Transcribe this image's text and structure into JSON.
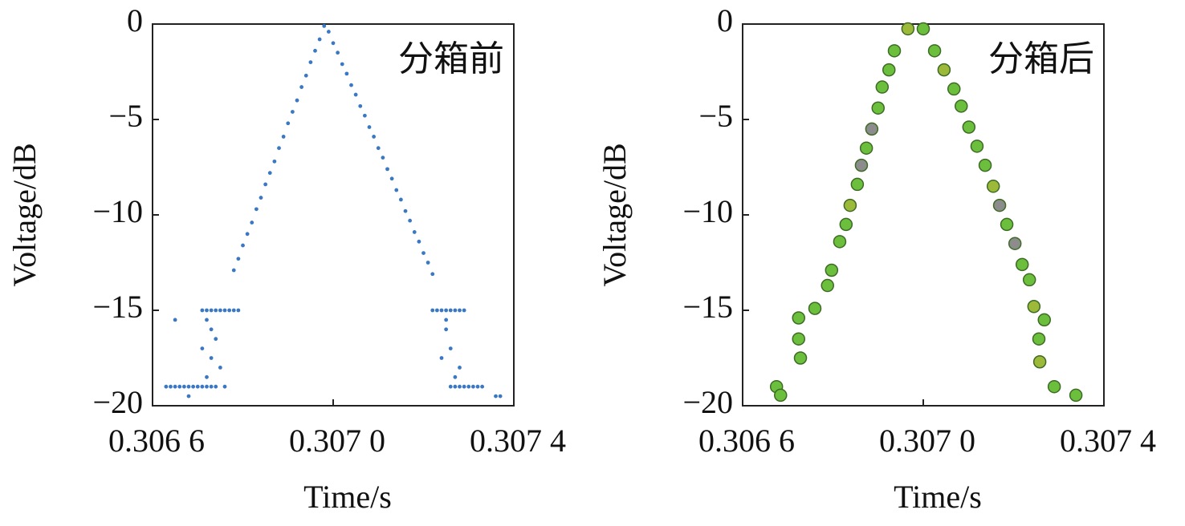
{
  "chart_data": [
    {
      "type": "scatter",
      "annotation": "分箱前",
      "xlabel": "Time/s",
      "ylabel": "Voltage/dB",
      "color": "#3a78c4",
      "xlim": [
        0.3066,
        0.3074
      ],
      "ylim": [
        -20,
        0
      ],
      "xticks": [
        {
          "value": 0.3066,
          "label": "0.306 6"
        },
        {
          "value": 0.307,
          "label": "0.307 0"
        },
        {
          "value": 0.3074,
          "label": "0.307 4"
        }
      ],
      "yticks": [
        {
          "value": -20,
          "label": "−20"
        },
        {
          "value": -15,
          "label": "−15"
        },
        {
          "value": -10,
          "label": "−10"
        },
        {
          "value": -5,
          "label": "−5"
        },
        0
      ],
      "x": [
        0.30678,
        0.30679,
        0.3068,
        0.30681,
        0.30682,
        0.30683,
        0.30684,
        0.30685,
        0.30686,
        0.30687,
        0.30688,
        0.30689,
        0.3069,
        0.30691,
        0.30692,
        0.30693,
        0.30694,
        0.30695,
        0.30696,
        0.30697,
        0.30698,
        0.30699,
        0.307,
        0.30701,
        0.30702,
        0.30703,
        0.30704,
        0.30705,
        0.30706,
        0.30707,
        0.30708,
        0.30709,
        0.3071,
        0.30711,
        0.30712,
        0.30713,
        0.30714,
        0.30715,
        0.30716,
        0.30717,
        0.30718,
        0.30719,
        0.3072,
        0.30721,
        0.30722,
        0.30671,
        0.30672,
        0.30673,
        0.30674,
        0.30675,
        0.30676,
        0.30677,
        0.30678,
        0.30679,
        0.30672,
        0.30673,
        0.30674,
        0.30671,
        0.30673,
        0.30675,
        0.30672,
        0.30676,
        0.30663,
        0.30664,
        0.30665,
        0.30666,
        0.30667,
        0.30668,
        0.30669,
        0.3067,
        0.30671,
        0.30672,
        0.30673,
        0.30674,
        0.30665,
        0.30668,
        0.30722,
        0.30723,
        0.30724,
        0.30725,
        0.30726,
        0.30727,
        0.30728,
        0.30729,
        0.30725,
        0.30726,
        0.30724,
        0.30728,
        0.30727,
        0.30725,
        0.30726,
        0.30727,
        0.30728,
        0.30729,
        0.3073,
        0.30731,
        0.30732,
        0.30733,
        0.30736,
        0.30737
      ],
      "y": [
        -12.9,
        -12.3,
        -11.6,
        -11.0,
        -10.4,
        -9.7,
        -9.1,
        -8.4,
        -7.8,
        -7.2,
        -6.5,
        -5.9,
        -5.2,
        -4.6,
        -4.0,
        -3.3,
        -2.7,
        -2.0,
        -1.4,
        -0.8,
        -0.1,
        -0.4,
        -1.0,
        -1.5,
        -2.1,
        -2.6,
        -3.2,
        -3.7,
        -4.3,
        -4.8,
        -5.4,
        -5.9,
        -6.5,
        -7.0,
        -7.6,
        -8.1,
        -8.7,
        -9.2,
        -9.8,
        -10.3,
        -10.9,
        -11.4,
        -12.0,
        -12.5,
        -13.1,
        -15,
        -15,
        -15,
        -15,
        -15,
        -15,
        -15,
        -15,
        -15,
        -15.5,
        -16,
        -16.5,
        -17,
        -17.5,
        -18,
        -18.5,
        -19,
        -19,
        -19,
        -19,
        -19,
        -19,
        -19,
        -19,
        -19,
        -19,
        -19,
        -19,
        -19,
        -15.5,
        -19.5,
        -15,
        -15,
        -15,
        -15,
        -15,
        -15,
        -15,
        -15,
        -16,
        -17,
        -17.5,
        -18,
        -18.5,
        -15.5,
        -19,
        -19,
        -19,
        -19,
        -19,
        -19,
        -19,
        -19,
        -19.5,
        -19.5
      ]
    },
    {
      "type": "scatter",
      "annotation": "分箱后",
      "xlabel": "Time/s",
      "ylabel": "Voltage/dB",
      "xlim": [
        0.3066,
        0.3074
      ],
      "ylim": [
        -20,
        0
      ],
      "xticks": [
        {
          "value": 0.3066,
          "label": "0.306 6"
        },
        {
          "value": 0.307,
          "label": "0.307 0"
        },
        {
          "value": 0.3074,
          "label": "0.307 4"
        }
      ],
      "yticks": [
        {
          "value": -20,
          "label": "−20"
        },
        {
          "value": -15,
          "label": "−15"
        },
        {
          "value": -10,
          "label": "−10"
        },
        {
          "value": -5,
          "label": "−5"
        },
        0
      ],
      "x": [
        0.306675,
        0.306684,
        0.306724,
        0.306724,
        0.306728,
        0.30676,
        0.306788,
        0.306797,
        0.306815,
        0.306829,
        0.306838,
        0.306854,
        0.306863,
        0.306874,
        0.306886,
        0.3069,
        0.306909,
        0.306924,
        0.306936,
        0.306966,
        0.307,
        0.307025,
        0.307046,
        0.307068,
        0.307084,
        0.307101,
        0.307119,
        0.307137,
        0.307155,
        0.307169,
        0.307185,
        0.307203,
        0.307219,
        0.307235,
        0.307245,
        0.307268,
        0.307256,
        0.307258,
        0.30729,
        0.307338
      ],
      "y": [
        -19.0,
        -19.45,
        -15.4,
        -16.5,
        -17.5,
        -14.9,
        -13.7,
        -12.9,
        -11.4,
        -10.5,
        -9.5,
        -8.4,
        -7.4,
        -6.5,
        -5.5,
        -4.4,
        -3.3,
        -2.4,
        -1.4,
        -0.25,
        -0.25,
        -1.4,
        -2.4,
        -3.4,
        -4.3,
        -5.4,
        -6.4,
        -7.4,
        -8.5,
        -9.5,
        -10.5,
        -11.5,
        -12.6,
        -13.4,
        -14.8,
        -15.5,
        -16.5,
        -17.7,
        -19.0,
        -19.45
      ],
      "colors": [
        "#6cbf3c",
        "#6cbf3c",
        "#6cbf3c",
        "#6cbf3c",
        "#6cbf3c",
        "#6cbf3c",
        "#6cbf3c",
        "#6cbf3c",
        "#6cbf3c",
        "#6cbf3c",
        "#9db93a",
        "#6cbf3c",
        "#8c8c8c",
        "#6cbf3c",
        "#8c8c8c",
        "#6cbf3c",
        "#6cbf3c",
        "#6cbf3c",
        "#6cbf3c",
        "#9db93a",
        "#6cbf3c",
        "#6cbf3c",
        "#9db93a",
        "#6cbf3c",
        "#6cbf3c",
        "#6cbf3c",
        "#6cbf3c",
        "#6cbf3c",
        "#9db93a",
        "#8c8c8c",
        "#6cbf3c",
        "#8c8c8c",
        "#6cbf3c",
        "#6cbf3c",
        "#9db93a",
        "#6cbf3c",
        "#6cbf3c",
        "#9db93a",
        "#6cbf3c",
        "#6cbf3c"
      ]
    }
  ]
}
